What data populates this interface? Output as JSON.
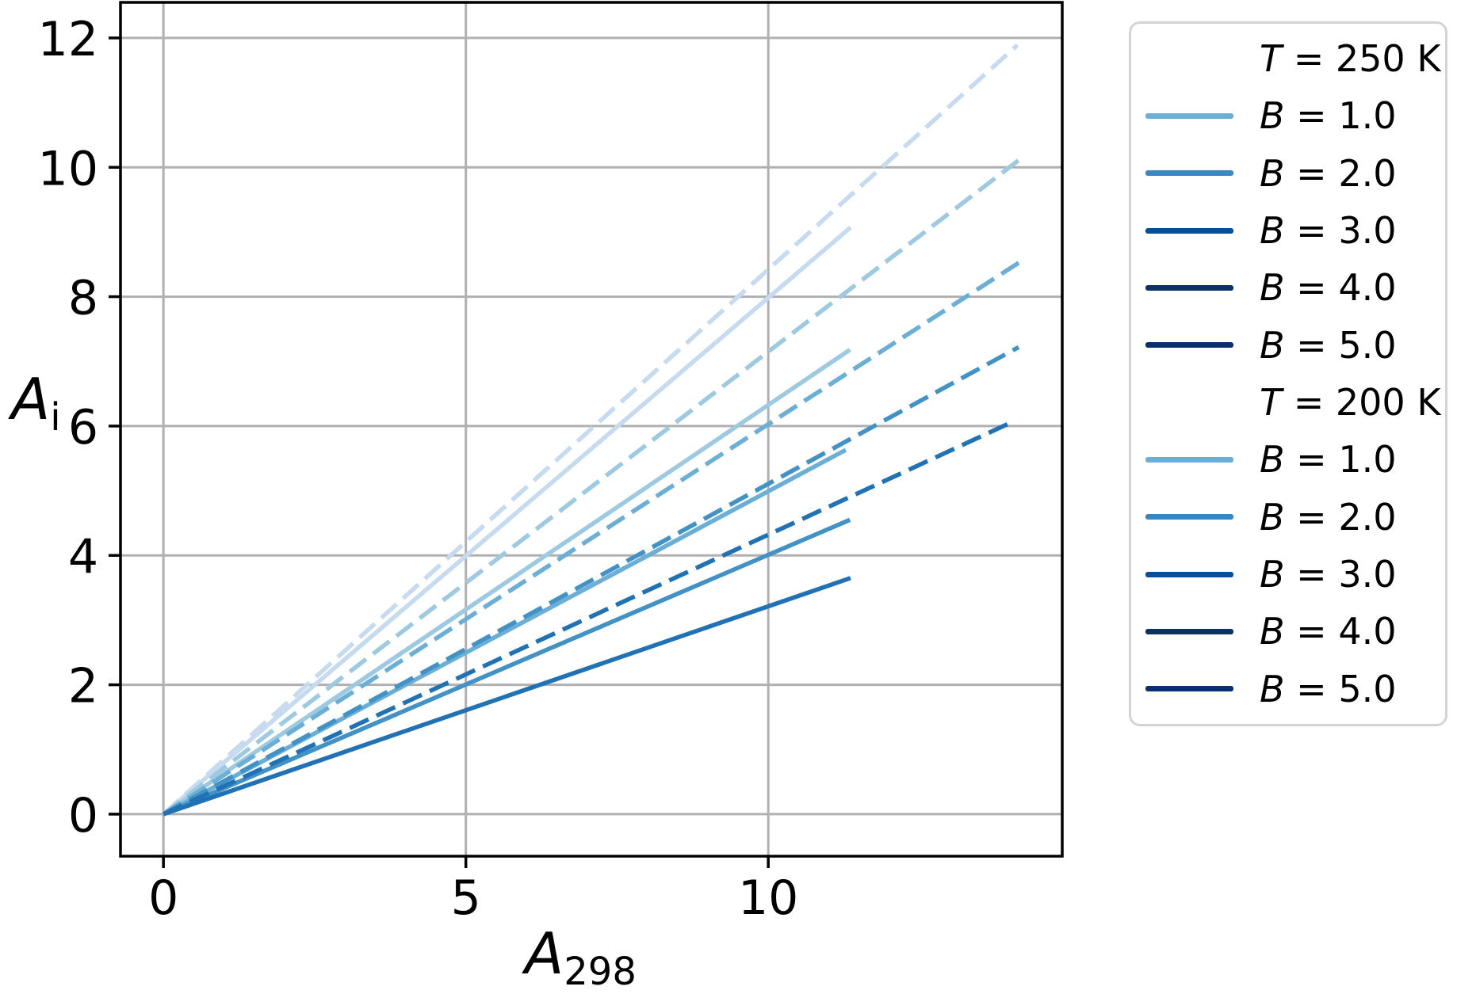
{
  "figure": {
    "background": "#ffffff"
  },
  "axes": {
    "xlabel": {
      "var": "A",
      "sub": "298"
    },
    "ylabel": {
      "var": "A",
      "sub": "i"
    },
    "x_ticks": {
      "values": [
        0,
        5,
        10
      ],
      "labels": [
        "0",
        "5",
        "10"
      ]
    },
    "y_ticks": {
      "values": [
        0,
        2,
        4,
        6,
        8,
        10,
        12
      ],
      "labels": [
        "0",
        "2",
        "4",
        "6",
        "8",
        "10",
        "12"
      ]
    },
    "grid_color": "#b0b0b0",
    "spine_color": "#000000"
  },
  "chart_data": {
    "type": "line",
    "title": "",
    "xlabel": "A_298",
    "ylabel": "A_i",
    "xlim": [
      -0.71,
      14.86
    ],
    "ylim": [
      -0.65,
      12.55
    ],
    "grid": true,
    "legend_position": "right outside",
    "series": [
      {
        "name": "T=200K B=1.0",
        "group": "T = 200 K",
        "B": 1.0,
        "style": "solid",
        "color": "#c6dbef",
        "points": [
          [
            0,
            0
          ],
          [
            11.36,
            9.07
          ]
        ],
        "slope": 0.8
      },
      {
        "name": "T=200K B=2.0",
        "group": "T = 200 K",
        "B": 2.0,
        "style": "solid",
        "color": "#9ecae1",
        "points": [
          [
            0,
            0
          ],
          [
            11.35,
            7.18
          ]
        ],
        "slope": 0.63
      },
      {
        "name": "T=200K B=3.0",
        "group": "T = 200 K",
        "B": 3.0,
        "style": "solid",
        "color": "#6baed6",
        "points": [
          [
            0,
            0
          ],
          [
            11.28,
            5.63
          ]
        ],
        "slope": 0.5
      },
      {
        "name": "T=200K B=4.0",
        "group": "T = 200 K",
        "B": 4.0,
        "style": "solid",
        "color": "#4292c6",
        "points": [
          [
            0,
            0
          ],
          [
            11.35,
            4.55
          ]
        ],
        "slope": 0.4
      },
      {
        "name": "T=200K B=5.0",
        "group": "T = 200 K",
        "B": 5.0,
        "style": "solid",
        "color": "#2171b5",
        "points": [
          [
            0,
            0
          ],
          [
            11.36,
            3.65
          ]
        ],
        "slope": 0.32
      },
      {
        "name": "T=250K B=1.0",
        "group": "T = 250 K",
        "B": 1.0,
        "style": "dashed",
        "color": "#c6dbef",
        "points": [
          [
            0,
            0
          ],
          [
            14.12,
            11.89
          ]
        ],
        "slope": 0.84
      },
      {
        "name": "T=250K B=2.0",
        "group": "T = 250 K",
        "B": 2.0,
        "style": "dashed",
        "color": "#9ecae1",
        "points": [
          [
            0,
            0
          ],
          [
            14.14,
            10.11
          ]
        ],
        "slope": 0.72
      },
      {
        "name": "T=250K B=3.0",
        "group": "T = 250 K",
        "B": 3.0,
        "style": "dashed",
        "color": "#6baed6",
        "points": [
          [
            0,
            0
          ],
          [
            14.15,
            8.53
          ]
        ],
        "slope": 0.6
      },
      {
        "name": "T=250K B=4.0",
        "group": "T = 250 K",
        "B": 4.0,
        "style": "dashed",
        "color": "#4292c6",
        "points": [
          [
            0,
            0
          ],
          [
            14.14,
            7.22
          ]
        ],
        "slope": 0.51
      },
      {
        "name": "T=250K B=5.0",
        "group": "T = 250 K",
        "B": 5.0,
        "style": "dashed",
        "color": "#2171b5",
        "points": [
          [
            0,
            0
          ],
          [
            14.05,
            6.07
          ]
        ],
        "slope": 0.43
      }
    ]
  },
  "legend": {
    "rows": [
      {
        "header": true,
        "var": "T",
        "rest": " = 250 K",
        "color": ""
      },
      {
        "header": false,
        "var": "B",
        "rest": " = 1.0",
        "color": "#6baed6"
      },
      {
        "header": false,
        "var": "B",
        "rest": " = 2.0",
        "color": "#3987c0"
      },
      {
        "header": false,
        "var": "B",
        "rest": " = 3.0",
        "color": "#0b4d96"
      },
      {
        "header": false,
        "var": "B",
        "rest": " = 4.0",
        "color": "#0a3268"
      },
      {
        "header": false,
        "var": "B",
        "rest": " = 5.0",
        "color": "#08306b"
      },
      {
        "header": true,
        "var": "T",
        "rest": " = 200 K",
        "color": ""
      },
      {
        "header": false,
        "var": "B",
        "rest": " = 1.0",
        "color": "#6baed6"
      },
      {
        "header": false,
        "var": "B",
        "rest": " = 2.0",
        "color": "#3987c0"
      },
      {
        "header": false,
        "var": "B",
        "rest": " = 3.0",
        "color": "#0b4d96"
      },
      {
        "header": false,
        "var": "B",
        "rest": " = 4.0",
        "color": "#0a3268"
      },
      {
        "header": false,
        "var": "B",
        "rest": " = 5.0",
        "color": "#08306b"
      }
    ]
  }
}
